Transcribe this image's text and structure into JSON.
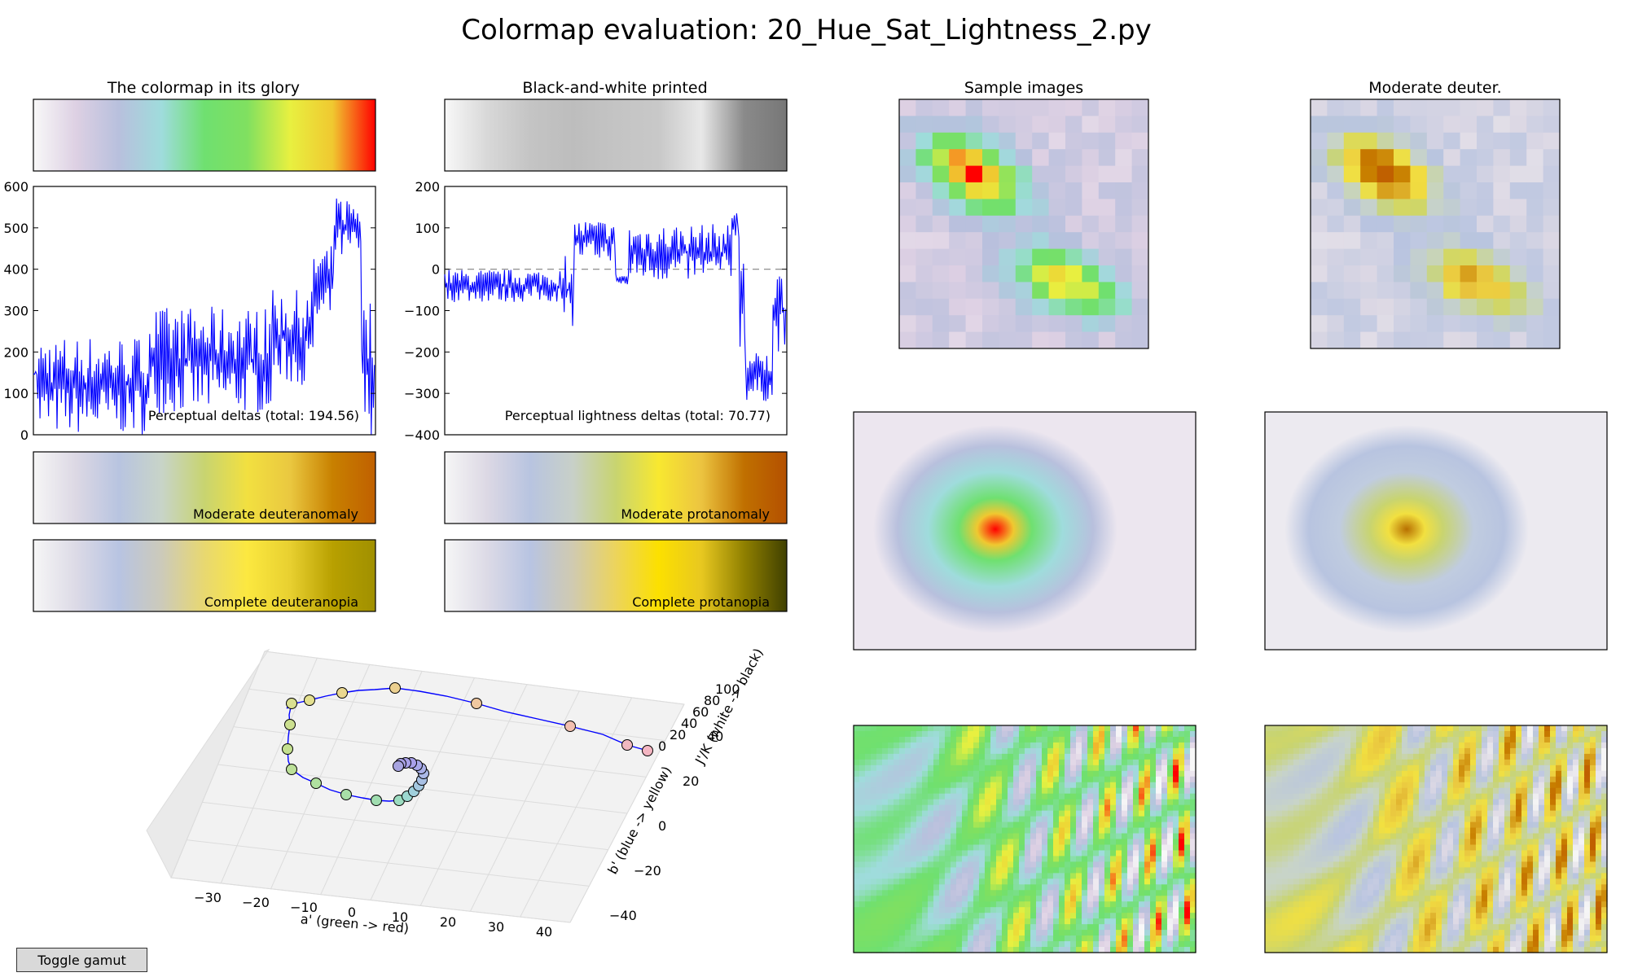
{
  "figure": {
    "title": "Colormap evaluation: 20_Hue_Sat_Lightness_2.py",
    "toggle_label": "Toggle gamut"
  },
  "colors": {
    "line": "#0000ff",
    "zero_line": "#808080"
  },
  "colormaps": {
    "glory": [
      "#f8f8f8",
      "#ddd0e3",
      "#b8c0dd",
      "#9fdcdc",
      "#6fe070",
      "#80e060",
      "#e8f040",
      "#f0c830",
      "#ff0000"
    ],
    "bw": [
      "#f8f8f8",
      "#d8d8d8",
      "#c4c4c4",
      "#bdbdbd",
      "#c4c4c4",
      "#c8c8c8",
      "#e8e8e8",
      "#8a8a8a",
      "#777777"
    ],
    "deutan": [
      "#f6f6f6",
      "#dcd8e4",
      "#b8c4e0",
      "#c8d4c8",
      "#c8d470",
      "#f2e040",
      "#eac840",
      "#c88000",
      "#c06000"
    ],
    "protan": [
      "#f6f6f6",
      "#dcd8e4",
      "#b8c4e0",
      "#c8d0c8",
      "#c8d470",
      "#f8e830",
      "#ecc440",
      "#c07000",
      "#b45000"
    ],
    "deutan_full": [
      "#f6f6f6",
      "#dcdae6",
      "#b8c4e2",
      "#cccaba",
      "#e8d870",
      "#fce840",
      "#e8d030",
      "#b8a000",
      "#a09000"
    ],
    "protan_full": [
      "#f6f6f6",
      "#dcdae6",
      "#b8c4e2",
      "#d0cab0",
      "#ecd45c",
      "#fce000",
      "#e8c820",
      "#908000",
      "#404000"
    ]
  },
  "chart_data": [
    {
      "type": "line",
      "title": "The colormap in its glory",
      "annotation": "Perceptual deltas (total: 194.56)",
      "xlim": [
        0,
        1
      ],
      "ylim": [
        0,
        600
      ],
      "yticks": [
        0,
        100,
        200,
        300,
        400,
        500,
        600
      ],
      "segments": [
        {
          "x": [
            0.0,
            0.01
          ],
          "lo": 130,
          "hi": 165
        },
        {
          "x": [
            0.01,
            0.34
          ],
          "lo": 0,
          "hi": 240
        },
        {
          "x": [
            0.34,
            0.7
          ],
          "lo": 50,
          "hi": 310
        },
        {
          "x": [
            0.7,
            0.82
          ],
          "lo": 120,
          "hi": 350
        },
        {
          "x": [
            0.82,
            0.88
          ],
          "lo": 250,
          "hi": 460
        },
        {
          "x": [
            0.88,
            0.96
          ],
          "lo": 420,
          "hi": 580
        },
        {
          "x": [
            0.96,
            1.0
          ],
          "lo": 0,
          "hi": 330
        }
      ]
    },
    {
      "type": "line",
      "title": "Black-and-white printed",
      "annotation": "Perceptual lightness deltas (total: 70.77)",
      "xlim": [
        0,
        1
      ],
      "ylim": [
        -400,
        200
      ],
      "yticks": [
        -400,
        -300,
        -200,
        -100,
        0,
        100,
        200
      ],
      "yticklabels": [
        "−400",
        "−300",
        "−200",
        "−100",
        "0",
        "100",
        "200"
      ],
      "zero_line": 0,
      "segments": [
        {
          "x": [
            0.0,
            0.34
          ],
          "lo": -80,
          "hi": 0
        },
        {
          "x": [
            0.34,
            0.38
          ],
          "lo": -140,
          "hi": 40
        },
        {
          "x": [
            0.38,
            0.5
          ],
          "lo": 20,
          "hi": 120
        },
        {
          "x": [
            0.5,
            0.54
          ],
          "lo": -40,
          "hi": -10
        },
        {
          "x": [
            0.54,
            0.84
          ],
          "lo": -30,
          "hi": 110
        },
        {
          "x": [
            0.84,
            0.86
          ],
          "lo": 80,
          "hi": 150
        },
        {
          "x": [
            0.86,
            0.88
          ],
          "lo": -200,
          "hi": 100
        },
        {
          "x": [
            0.88,
            0.96
          ],
          "lo": -320,
          "hi": -200
        },
        {
          "x": [
            0.96,
            1.0
          ],
          "lo": -200,
          "hi": 0
        }
      ]
    },
    {
      "type": "scatter",
      "title": "",
      "xlabel": "a' (green -> red)",
      "ylabel": "b' (blue -> yellow)",
      "zlabel": "J'/K (white -> black)",
      "xticks": [
        "−30",
        "−20",
        "−10",
        "0",
        "10",
        "20",
        "30",
        "40"
      ],
      "yticks": [
        "−40",
        "−20",
        "0",
        "20",
        "40"
      ],
      "zticks": [
        "0",
        "20",
        "40",
        "60",
        "80",
        "100"
      ]
    }
  ],
  "panels": {
    "glory_label": "",
    "deutan_label": "Moderate deuteranomaly",
    "protan_label": "Moderate protanomaly",
    "deutan_full_label": "Complete deuteranopia",
    "protan_full_label": "Complete protanopia",
    "sample_title": "Sample images",
    "deuter_title": "Moderate deuter."
  }
}
